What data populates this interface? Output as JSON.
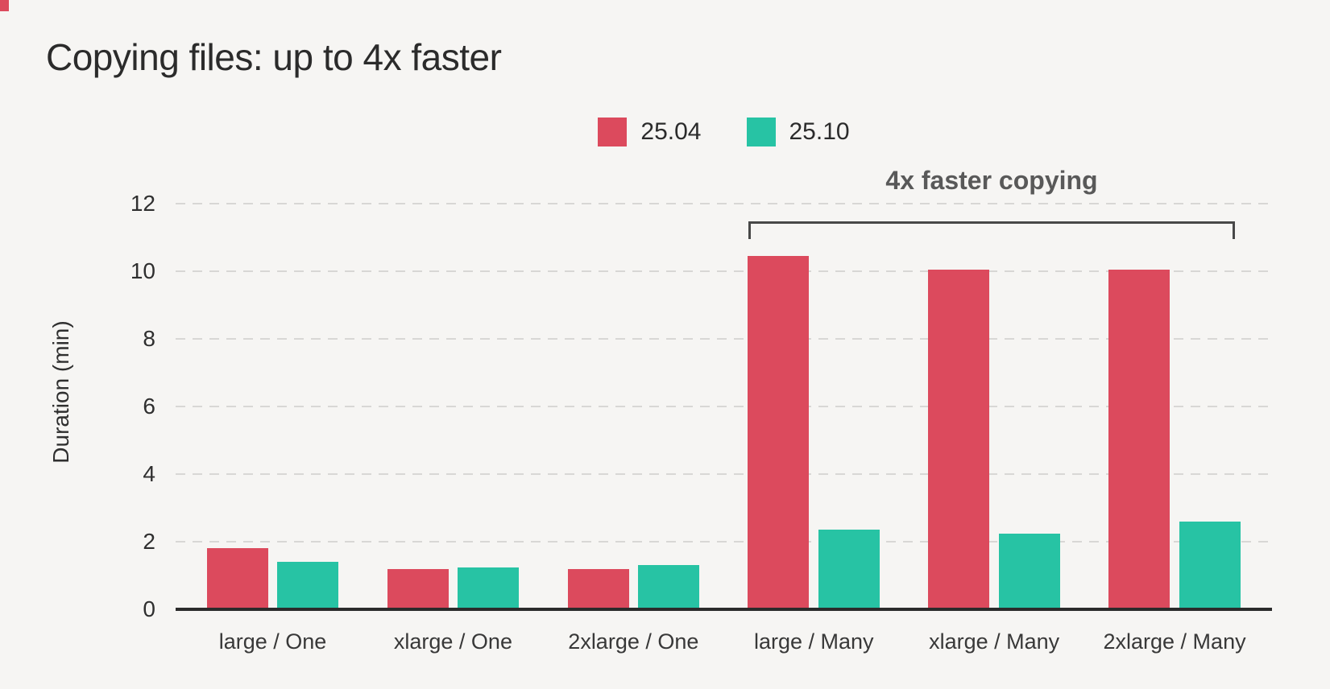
{
  "page": {
    "background_color": "#f6f5f3",
    "corner_mark_color": "#dc4a5d"
  },
  "chart_data": {
    "type": "bar",
    "title": "Copying files: up to 4x faster",
    "xlabel": "",
    "ylabel": "Duration (min)",
    "ylim": [
      0,
      12
    ],
    "yticks": [
      0,
      2,
      4,
      6,
      8,
      10,
      12
    ],
    "grid": "horizontal-dashed",
    "legend_position": "top-center",
    "categories": [
      "large / One",
      "xlarge / One",
      "2xlarge / One",
      "large / Many",
      "xlarge / Many",
      "2xlarge / Many"
    ],
    "series": [
      {
        "name": "25.04",
        "color": "#dc4a5d",
        "values": [
          1.8,
          1.2,
          1.2,
          10.45,
          10.05,
          10.05
        ]
      },
      {
        "name": "25.10",
        "color": "#27c3a4",
        "values": [
          1.4,
          1.25,
          1.3,
          2.35,
          2.25,
          2.6
        ]
      }
    ],
    "annotation": {
      "label": "4x faster copying",
      "spans_categories": [
        "large / Many",
        "xlarge / Many",
        "2xlarge / Many"
      ]
    }
  }
}
